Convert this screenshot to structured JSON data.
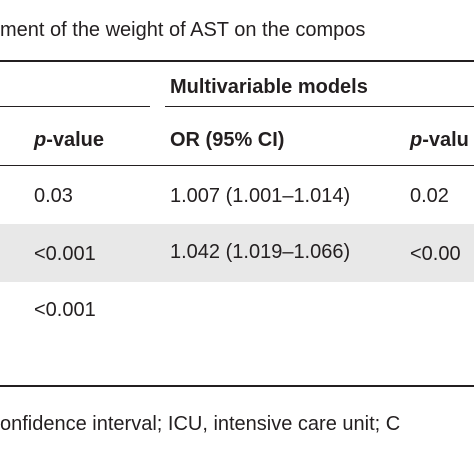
{
  "title": "ment of the weight of AST on the compos",
  "table": {
    "header": {
      "group": "Multivariable models",
      "columns": [
        {
          "italic": "p",
          "text": "-value"
        },
        "OR (95% CI)",
        {
          "italic": "p",
          "text": "-valu"
        }
      ]
    },
    "rows": [
      [
        "0.03",
        "1.007 (1.001–1.014)",
        "0.02"
      ],
      [
        "<0.001",
        "1.042 (1.019–1.066)",
        "<0.00"
      ],
      [
        "<0.001"
      ]
    ]
  },
  "footnote": "onfidence interval; ICU, intensive care unit; C"
}
